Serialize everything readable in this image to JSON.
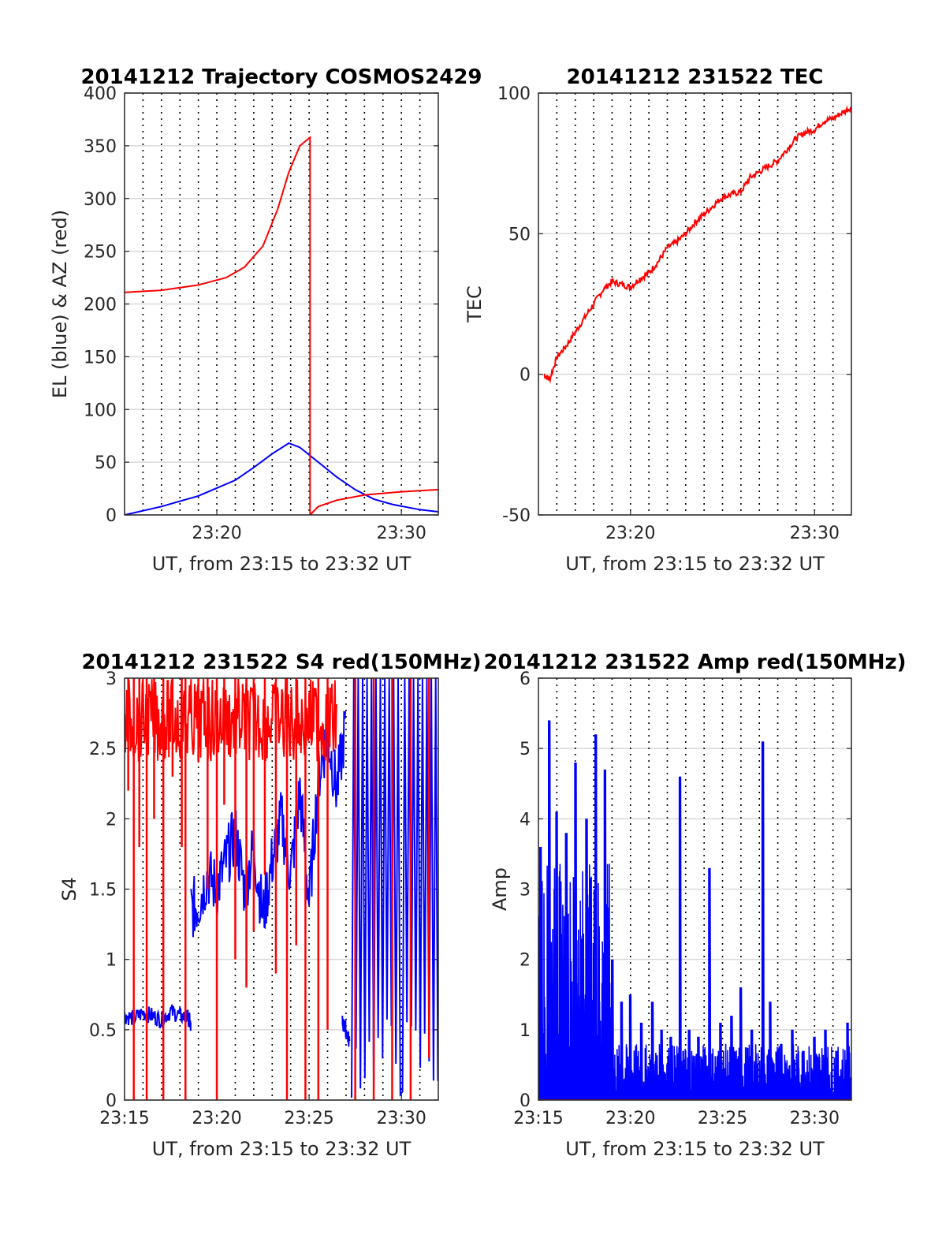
{
  "figure": {
    "background": "#ffffff",
    "colors": {
      "blue": "#0000ff",
      "red": "#ff0000",
      "axis": "#262626",
      "grid": "#d9d9d9"
    }
  },
  "chart_data": [
    {
      "id": "trajectory",
      "type": "line",
      "title": "20141212 Trajectory COSMOS2429",
      "xlabel": "UT, from 23:15 to 23:32 UT",
      "ylabel": "EL (blue) & AZ (red)",
      "xlim_minutes": [
        0,
        17
      ],
      "ylim": [
        0,
        400
      ],
      "yticks": [
        "0",
        "50",
        "100",
        "150",
        "200",
        "250",
        "300",
        "350",
        "400"
      ],
      "xticks": [
        {
          "label": "23:20",
          "minute": 5
        },
        {
          "label": "23:30",
          "minute": 15
        }
      ],
      "grid": "y-solid, x-dotted",
      "series": [
        {
          "color": "#0000ff",
          "points_minute_value": [
            [
              0,
              0
            ],
            [
              2,
              8
            ],
            [
              4,
              18
            ],
            [
              6,
              33
            ],
            [
              7,
              45
            ],
            [
              8,
              58
            ],
            [
              8.9,
              68
            ],
            [
              9.5,
              64
            ],
            [
              10.5,
              50
            ],
            [
              11.5,
              36
            ],
            [
              12.5,
              24
            ],
            [
              13.5,
              15
            ],
            [
              14.5,
              10
            ],
            [
              16,
              5
            ],
            [
              17,
              3
            ]
          ]
        },
        {
          "color": "#ff0000",
          "points_minute_value": [
            [
              0,
              211
            ],
            [
              2,
              213
            ],
            [
              4,
              218
            ],
            [
              5.5,
              225
            ],
            [
              6.5,
              235
            ],
            [
              7.5,
              255
            ],
            [
              8.3,
              290
            ],
            [
              8.9,
              325
            ],
            [
              9.5,
              350
            ],
            [
              10.05,
              358
            ],
            [
              10.05,
              0
            ],
            [
              10.5,
              8
            ],
            [
              11.5,
              14
            ],
            [
              13,
              19
            ],
            [
              15,
              22
            ],
            [
              17,
              24
            ]
          ]
        }
      ]
    },
    {
      "id": "tec",
      "type": "line",
      "title": "20141212 231522 TEC",
      "xlabel": "UT, from 23:15 to 23:32 UT",
      "ylabel": "TEC",
      "xlim_minutes": [
        0,
        17
      ],
      "ylim": [
        -50,
        100
      ],
      "yticks": [
        "-50",
        "0",
        "50",
        "100"
      ],
      "xticks": [
        {
          "label": "23:20",
          "minute": 5
        },
        {
          "label": "23:30",
          "minute": 15
        }
      ],
      "grid": "y-solid, x-dotted",
      "series": [
        {
          "color": "#ff0000",
          "points_minute_value": [
            [
              0.3,
              0
            ],
            [
              0.6,
              -2
            ],
            [
              1,
              6
            ],
            [
              1.5,
              10
            ],
            [
              2,
              15
            ],
            [
              2.5,
              20
            ],
            [
              3,
              25
            ],
            [
              3.5,
              30
            ],
            [
              4,
              33
            ],
            [
              4.5,
              32
            ],
            [
              5,
              31
            ],
            [
              5.5,
              34
            ],
            [
              6,
              36
            ],
            [
              6.5,
              40
            ],
            [
              7,
              45
            ],
            [
              7.5,
              47
            ],
            [
              8,
              50
            ],
            [
              8.5,
              54
            ],
            [
              9,
              57
            ],
            [
              9.5,
              60
            ],
            [
              10,
              63
            ],
            [
              10.5,
              64
            ],
            [
              11,
              65
            ],
            [
              11.5,
              70
            ],
            [
              12,
              72
            ],
            [
              12.5,
              74
            ],
            [
              13,
              76
            ],
            [
              13.5,
              80
            ],
            [
              14,
              84
            ],
            [
              14.5,
              86
            ],
            [
              15,
              87
            ],
            [
              15.5,
              90
            ],
            [
              16,
              91
            ],
            [
              16.5,
              93
            ],
            [
              17,
              95
            ]
          ]
        }
      ]
    },
    {
      "id": "s4",
      "type": "line",
      "title": "20141212 231522 S4 red(150MHz)",
      "xlabel": "UT, from 23:15 to 23:32 UT",
      "ylabel": "S4",
      "xlim_minutes": [
        0,
        17
      ],
      "ylim": [
        0,
        3
      ],
      "yticks": [
        "0",
        "0.5",
        "1",
        "1.5",
        "2",
        "2.5",
        "3"
      ],
      "xticks": [
        {
          "label": "23:15",
          "minute": 0
        },
        {
          "label": "23:20",
          "minute": 5
        },
        {
          "label": "23:25",
          "minute": 10
        },
        {
          "label": "23:30",
          "minute": 15
        }
      ],
      "grid": "y-solid, x-dotted",
      "series": [
        {
          "color": "#0000ff",
          "segments_minute_value": [
            [
              [
                0,
                0.6
              ],
              [
                0.5,
                0.58
              ],
              [
                1,
                0.62
              ],
              [
                1.5,
                0.6
              ],
              [
                2,
                0.57
              ],
              [
                2.5,
                0.63
              ],
              [
                3,
                0.6
              ],
              [
                3.5,
                0.58
              ],
              [
                3.6,
                0.5
              ]
            ],
            [
              [
                3.6,
                1.35
              ],
              [
                4,
                1.4
              ],
              [
                4.5,
                1.6
              ],
              [
                5,
                1.5
              ],
              [
                5.5,
                1.7
              ],
              [
                6,
                1.9
              ],
              [
                6.5,
                1.5
              ],
              [
                7,
                1.8
              ],
              [
                7.5,
                1.3
              ],
              [
                8,
                1.7
              ],
              [
                8.5,
                2.0
              ],
              [
                9,
                1.6
              ],
              [
                9.5,
                2.2
              ],
              [
                10,
                1.4
              ],
              [
                10.5,
                2.3
              ],
              [
                11,
                2.6
              ],
              [
                11.5,
                2.2
              ],
              [
                12,
                2.7
              ]
            ],
            [
              [
                11.8,
                0.55
              ],
              [
                12,
                0.5
              ],
              [
                12.2,
                0.4
              ]
            ]
          ]
        },
        {
          "color": "#ff0000",
          "spikes_minute_range": [
            [
              0.2,
              3,
              2.2
            ],
            [
              0.5,
              3,
              0
            ],
            [
              0.8,
              3,
              1.8
            ],
            [
              1.2,
              3,
              0
            ],
            [
              1.6,
              3,
              2.0
            ],
            [
              2.1,
              3,
              0
            ],
            [
              2.6,
              3,
              2.3
            ],
            [
              3.1,
              3,
              1.8
            ],
            [
              3.3,
              3,
              0
            ],
            [
              4.0,
              3,
              2.4
            ],
            [
              4.5,
              3,
              1.5
            ],
            [
              5,
              3,
              0
            ],
            [
              5.4,
              3,
              2.1
            ],
            [
              6,
              3,
              1.0
            ],
            [
              6.6,
              3,
              0.8
            ],
            [
              7.0,
              3,
              1.2
            ],
            [
              7.6,
              3,
              1.6
            ],
            [
              8.2,
              3,
              0.9
            ],
            [
              8.8,
              3,
              0
            ],
            [
              9.3,
              3,
              1.1
            ],
            [
              9.8,
              3,
              0
            ],
            [
              10.5,
              3,
              0
            ],
            [
              11.0,
              3,
              0.5
            ],
            [
              12.5,
              3,
              0
            ],
            [
              13.5,
              3,
              0
            ],
            [
              14.5,
              3,
              0
            ],
            [
              15.5,
              3,
              0
            ],
            [
              16.5,
              3,
              0.3
            ]
          ]
        }
      ]
    },
    {
      "id": "amp",
      "type": "line",
      "title": "20141212 231522 Amp red(150MHz)",
      "xlabel": "UT, from 23:15 to 23:32 UT",
      "ylabel": "Amp",
      "xlim_minutes": [
        0,
        17
      ],
      "ylim": [
        0,
        6
      ],
      "yticks": [
        "0",
        "1",
        "2",
        "3",
        "4",
        "5",
        "6"
      ],
      "xticks": [
        {
          "label": "23:15",
          "minute": 0
        },
        {
          "label": "23:20",
          "minute": 5
        },
        {
          "label": "23:25",
          "minute": 10
        },
        {
          "label": "23:30",
          "minute": 15
        }
      ],
      "grid": "y-solid, x-dotted",
      "series": [
        {
          "color": "#0000ff",
          "peaks_minute_value": [
            [
              0.1,
              3.6
            ],
            [
              0.6,
              5.4
            ],
            [
              1.0,
              4.1
            ],
            [
              1.5,
              3.8
            ],
            [
              2.0,
              4.8
            ],
            [
              2.6,
              4.0
            ],
            [
              3.1,
              5.2
            ],
            [
              3.6,
              4.7
            ],
            [
              4.0,
              2.0
            ],
            [
              4.5,
              1.4
            ],
            [
              5.0,
              1.5
            ],
            [
              5.6,
              1.1
            ],
            [
              6.2,
              1.4
            ],
            [
              6.7,
              1.0
            ],
            [
              7.2,
              0.9
            ],
            [
              7.7,
              4.6
            ],
            [
              8.2,
              1.0
            ],
            [
              8.7,
              0.9
            ],
            [
              9.3,
              3.3
            ],
            [
              9.9,
              1.1
            ],
            [
              10.5,
              1.2
            ],
            [
              11.0,
              1.6
            ],
            [
              11.6,
              1.0
            ],
            [
              12.2,
              5.1
            ],
            [
              12.6,
              1.4
            ],
            [
              13.2,
              0.8
            ],
            [
              13.8,
              1.0
            ],
            [
              14.4,
              0.7
            ],
            [
              15.0,
              0.9
            ],
            [
              15.6,
              1.0
            ],
            [
              16.2,
              0.7
            ],
            [
              16.8,
              1.1
            ]
          ]
        },
        {
          "color": "#ff0000",
          "points_minute_value": [
            [
              0,
              0
            ],
            [
              17,
              0
            ]
          ]
        }
      ]
    }
  ]
}
